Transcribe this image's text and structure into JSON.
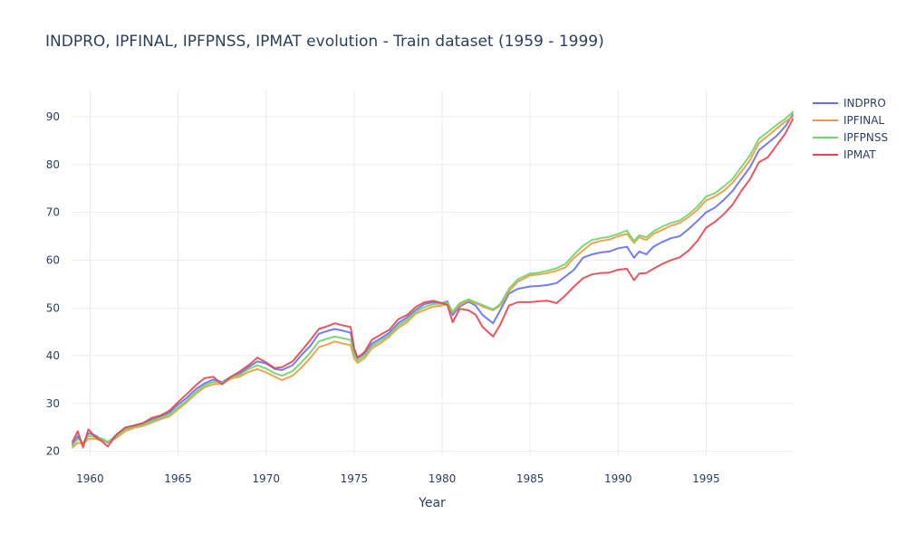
{
  "chart_data": {
    "type": "line",
    "title": "INDPRO, IPFINAL, IPFPNSS, IPMAT evolution  - Train dataset (1959 - 1999)",
    "xlabel": "Year",
    "ylabel": "",
    "xlim": [
      1959,
      1999.92
    ],
    "ylim": [
      18.8,
      95.5
    ],
    "xticks": [
      1960,
      1965,
      1970,
      1975,
      1980,
      1985,
      1990,
      1995
    ],
    "yticks": [
      20,
      30,
      40,
      50,
      60,
      70,
      80,
      90
    ],
    "grid": true,
    "legend_position": "top-right",
    "series": [
      {
        "name": "INDPRO",
        "color": "#636efa",
        "x": [
          1959.0,
          1959.3,
          1959.6,
          1959.9,
          1960.3,
          1960.7,
          1961.0,
          1961.5,
          1962.0,
          1962.5,
          1963.0,
          1963.5,
          1964.0,
          1964.5,
          1965.0,
          1965.5,
          1966.0,
          1966.5,
          1967.0,
          1967.5,
          1968.0,
          1968.5,
          1969.0,
          1969.5,
          1970.0,
          1970.5,
          1970.9,
          1971.5,
          1972.0,
          1972.5,
          1973.0,
          1973.5,
          1973.9,
          1974.3,
          1974.8,
          1975.0,
          1975.2,
          1975.6,
          1976.0,
          1976.5,
          1977.0,
          1977.5,
          1978.0,
          1978.5,
          1979.0,
          1979.5,
          1980.0,
          1980.3,
          1980.6,
          1981.0,
          1981.5,
          1981.9,
          1982.3,
          1982.9,
          1983.3,
          1983.8,
          1984.3,
          1985.0,
          1985.5,
          1986.0,
          1986.5,
          1987.0,
          1987.5,
          1988.0,
          1988.5,
          1989.0,
          1989.5,
          1990.0,
          1990.5,
          1990.9,
          1991.2,
          1991.6,
          1992.0,
          1992.5,
          1993.0,
          1993.5,
          1994.0,
          1994.5,
          1995.0,
          1995.5,
          1996.0,
          1996.5,
          1997.0,
          1997.5,
          1998.0,
          1998.5,
          1999.0,
          1999.5,
          1999.92
        ],
        "values": [
          21.5,
          23.2,
          21.5,
          23.8,
          23.3,
          22.4,
          21.8,
          23.5,
          24.8,
          25.3,
          25.8,
          26.6,
          27.3,
          28.1,
          29.8,
          31.2,
          33.0,
          34.2,
          35.0,
          34.5,
          35.6,
          36.3,
          37.6,
          38.8,
          38.4,
          37.2,
          37.0,
          38.0,
          40.1,
          42.0,
          44.6,
          45.2,
          45.6,
          45.3,
          44.8,
          41.0,
          39.5,
          40.5,
          42.5,
          43.6,
          44.8,
          46.8,
          48.0,
          49.6,
          50.8,
          51.2,
          51.0,
          51.4,
          48.5,
          50.3,
          51.3,
          50.5,
          48.5,
          46.8,
          49.5,
          53.0,
          54.0,
          54.5,
          54.6,
          54.8,
          55.2,
          56.6,
          58.0,
          60.5,
          61.2,
          61.6,
          61.8,
          62.5,
          62.8,
          60.5,
          61.8,
          61.2,
          62.8,
          63.8,
          64.6,
          65.0,
          66.5,
          68.2,
          70.0,
          71.0,
          72.6,
          74.5,
          77.0,
          79.5,
          83.0,
          84.5,
          86.0,
          88.0,
          90.5
        ]
      },
      {
        "name": "IPFINAL",
        "color": "#EF9A3B",
        "x": [
          1959.0,
          1959.3,
          1959.6,
          1959.9,
          1960.3,
          1960.7,
          1961.0,
          1961.5,
          1962.0,
          1962.5,
          1963.0,
          1963.5,
          1964.0,
          1964.5,
          1965.0,
          1965.5,
          1966.0,
          1966.5,
          1967.0,
          1967.5,
          1968.0,
          1968.5,
          1969.0,
          1969.5,
          1970.0,
          1970.5,
          1970.9,
          1971.5,
          1972.0,
          1972.5,
          1973.0,
          1973.5,
          1973.9,
          1974.3,
          1974.8,
          1975.0,
          1975.2,
          1975.6,
          1976.0,
          1976.5,
          1977.0,
          1977.5,
          1978.0,
          1978.5,
          1979.0,
          1979.5,
          1980.0,
          1980.3,
          1980.6,
          1981.0,
          1981.5,
          1981.9,
          1982.3,
          1982.9,
          1983.3,
          1983.8,
          1984.3,
          1985.0,
          1985.5,
          1986.0,
          1986.5,
          1987.0,
          1987.5,
          1988.0,
          1988.5,
          1989.0,
          1989.5,
          1990.0,
          1990.5,
          1990.9,
          1991.2,
          1991.6,
          1992.0,
          1992.5,
          1993.0,
          1993.5,
          1994.0,
          1994.5,
          1995.0,
          1995.5,
          1996.0,
          1996.5,
          1997.0,
          1997.5,
          1998.0,
          1998.5,
          1999.0,
          1999.5,
          1999.92
        ],
        "values": [
          20.8,
          21.8,
          21.6,
          22.6,
          22.6,
          22.3,
          21.9,
          22.8,
          24.2,
          24.9,
          25.3,
          26.0,
          26.7,
          27.3,
          28.8,
          30.3,
          32.0,
          33.4,
          34.0,
          34.2,
          35.2,
          35.6,
          36.6,
          37.2,
          36.5,
          35.6,
          34.9,
          35.8,
          37.5,
          39.5,
          41.8,
          42.4,
          43.0,
          42.6,
          42.2,
          39.5,
          38.5,
          39.5,
          41.5,
          42.6,
          44.0,
          45.8,
          47.0,
          48.8,
          49.6,
          50.3,
          50.5,
          50.9,
          49.0,
          50.6,
          51.5,
          51.0,
          50.3,
          49.5,
          50.5,
          53.5,
          55.5,
          56.8,
          57.0,
          57.3,
          57.8,
          58.5,
          60.5,
          62.0,
          63.5,
          64.0,
          64.3,
          65.0,
          65.5,
          63.6,
          64.8,
          64.2,
          65.5,
          66.3,
          67.2,
          67.8,
          69.0,
          70.5,
          72.5,
          73.3,
          74.5,
          76.2,
          78.5,
          81.0,
          84.5,
          86.0,
          87.5,
          89.0,
          90.0
        ]
      },
      {
        "name": "IPFPNSS",
        "color": "#6fd36a",
        "x": [
          1959.0,
          1959.3,
          1959.6,
          1959.9,
          1960.3,
          1960.7,
          1961.0,
          1961.5,
          1962.0,
          1962.5,
          1963.0,
          1963.5,
          1964.0,
          1964.5,
          1965.0,
          1965.5,
          1966.0,
          1966.5,
          1967.0,
          1967.5,
          1968.0,
          1968.5,
          1969.0,
          1969.5,
          1970.0,
          1970.5,
          1970.9,
          1971.5,
          1972.0,
          1972.5,
          1973.0,
          1973.5,
          1973.9,
          1974.3,
          1974.8,
          1975.0,
          1975.2,
          1975.6,
          1976.0,
          1976.5,
          1977.0,
          1977.5,
          1978.0,
          1978.5,
          1979.0,
          1979.5,
          1980.0,
          1980.3,
          1980.6,
          1981.0,
          1981.5,
          1981.9,
          1982.3,
          1982.9,
          1983.3,
          1983.8,
          1984.3,
          1985.0,
          1985.5,
          1986.0,
          1986.5,
          1987.0,
          1987.5,
          1988.0,
          1988.5,
          1989.0,
          1989.5,
          1990.0,
          1990.5,
          1990.9,
          1991.2,
          1991.6,
          1992.0,
          1992.5,
          1993.0,
          1993.5,
          1994.0,
          1994.5,
          1995.0,
          1995.5,
          1996.0,
          1996.5,
          1997.0,
          1997.5,
          1998.0,
          1998.5,
          1999.0,
          1999.5,
          1999.92
        ],
        "values": [
          21.2,
          22.6,
          21.8,
          23.2,
          23.0,
          22.6,
          22.0,
          23.2,
          24.6,
          25.2,
          25.6,
          26.3,
          27.0,
          27.7,
          29.2,
          30.6,
          32.4,
          33.8,
          34.5,
          34.4,
          35.5,
          36.0,
          37.2,
          38.0,
          37.3,
          36.3,
          35.8,
          36.8,
          38.6,
          40.6,
          43.0,
          43.6,
          44.0,
          43.7,
          43.3,
          40.3,
          39.0,
          40.0,
          42.0,
          43.1,
          44.4,
          46.3,
          47.5,
          49.2,
          50.2,
          50.8,
          50.9,
          51.2,
          49.2,
          51.0,
          51.8,
          51.2,
          50.6,
          49.7,
          50.8,
          54.0,
          56.0,
          57.2,
          57.4,
          57.8,
          58.3,
          59.2,
          61.2,
          63.0,
          64.2,
          64.6,
          64.9,
          65.5,
          66.2,
          64.0,
          65.2,
          64.8,
          66.0,
          67.0,
          67.8,
          68.3,
          69.6,
          71.2,
          73.3,
          74.0,
          75.4,
          77.0,
          79.5,
          82.0,
          85.4,
          86.8,
          88.3,
          89.6,
          91.0
        ]
      },
      {
        "name": "IPMAT",
        "color": "#e8444f",
        "x": [
          1959.0,
          1959.3,
          1959.6,
          1959.9,
          1960.3,
          1960.7,
          1961.0,
          1961.5,
          1962.0,
          1962.5,
          1963.0,
          1963.5,
          1964.0,
          1964.5,
          1965.0,
          1965.5,
          1966.0,
          1966.5,
          1967.0,
          1967.5,
          1968.0,
          1968.5,
          1969.0,
          1969.5,
          1970.0,
          1970.5,
          1970.9,
          1971.5,
          1972.0,
          1972.5,
          1973.0,
          1973.5,
          1973.9,
          1974.3,
          1974.8,
          1975.0,
          1975.2,
          1975.6,
          1976.0,
          1976.5,
          1977.0,
          1977.5,
          1978.0,
          1978.5,
          1979.0,
          1979.5,
          1980.0,
          1980.3,
          1980.6,
          1981.0,
          1981.5,
          1981.9,
          1982.3,
          1982.9,
          1983.3,
          1983.8,
          1984.3,
          1985.0,
          1985.5,
          1986.0,
          1986.5,
          1987.0,
          1987.5,
          1988.0,
          1988.5,
          1989.0,
          1989.5,
          1990.0,
          1990.5,
          1990.9,
          1991.2,
          1991.6,
          1992.0,
          1992.5,
          1993.0,
          1993.5,
          1994.0,
          1994.5,
          1995.0,
          1995.5,
          1996.0,
          1996.5,
          1997.0,
          1997.5,
          1998.0,
          1998.5,
          1999.0,
          1999.5,
          1999.92
        ],
        "values": [
          22.0,
          24.2,
          20.8,
          24.6,
          23.0,
          22.0,
          21.0,
          23.5,
          25.0,
          25.4,
          25.9,
          27.0,
          27.5,
          28.5,
          30.3,
          32.0,
          33.8,
          35.3,
          35.6,
          34.0,
          35.6,
          36.7,
          38.0,
          39.6,
          38.6,
          37.4,
          37.6,
          38.8,
          41.0,
          43.2,
          45.6,
          46.2,
          46.8,
          46.4,
          46.0,
          41.5,
          39.6,
          40.8,
          43.3,
          44.4,
          45.4,
          47.6,
          48.5,
          50.2,
          51.2,
          51.5,
          51.0,
          50.6,
          47.0,
          49.8,
          49.5,
          48.6,
          46.0,
          44.0,
          46.5,
          50.5,
          51.2,
          51.2,
          51.4,
          51.5,
          51.0,
          52.6,
          54.5,
          56.2,
          57.0,
          57.3,
          57.4,
          58.0,
          58.2,
          55.8,
          57.2,
          57.3,
          58.2,
          59.2,
          60.0,
          60.6,
          62.0,
          64.0,
          66.8,
          68.0,
          69.6,
          71.6,
          74.5,
          77.0,
          80.5,
          81.5,
          84.0,
          86.5,
          89.5
        ]
      }
    ]
  }
}
